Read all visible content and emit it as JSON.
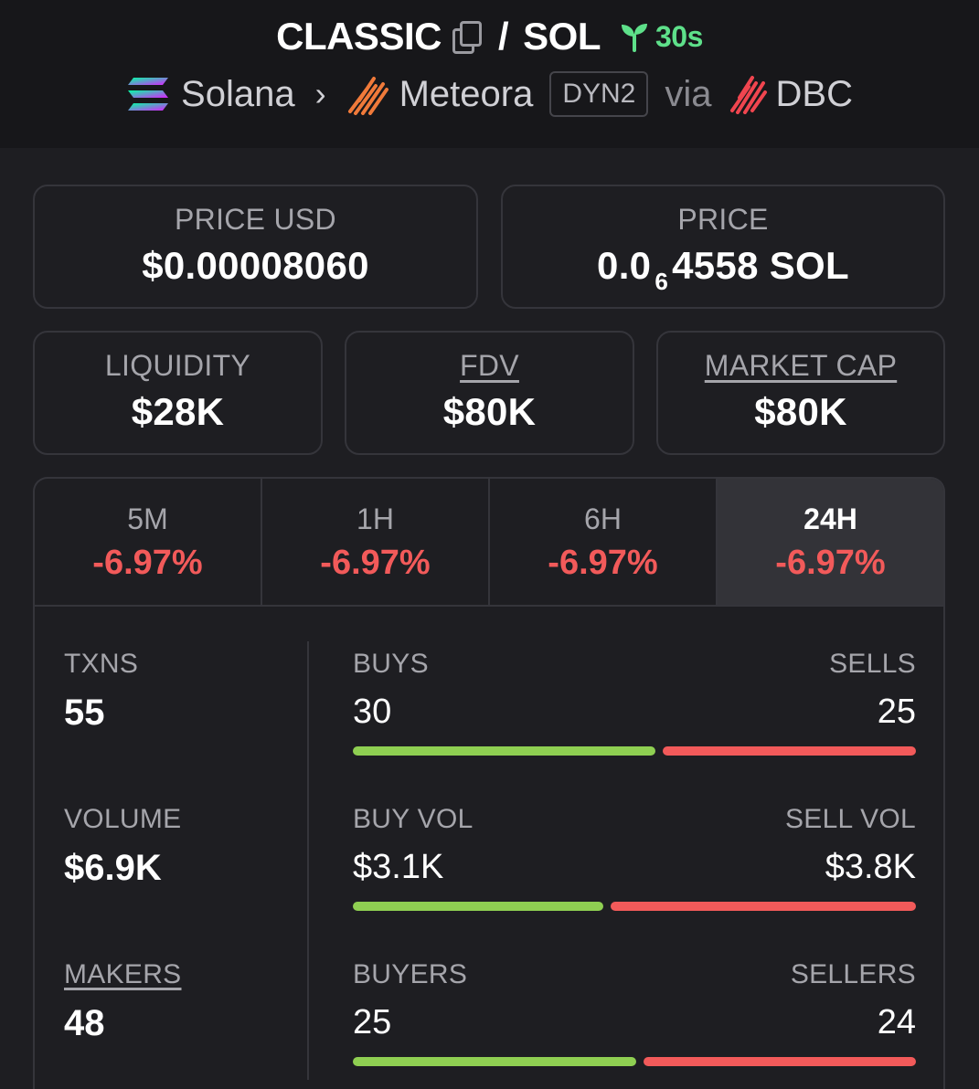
{
  "header": {
    "token_symbol": "CLASSIC",
    "slash": "/",
    "quote_symbol": "SOL",
    "age": "30s",
    "chain": "Solana",
    "dex": "Meteora",
    "pool_type": "DYN2",
    "via_label": "via",
    "launchpad": "DBC"
  },
  "prices": {
    "price_usd_label": "PRICE USD",
    "price_usd_value": "$0.00008060",
    "price_label": "PRICE",
    "price_prefix": "0.0",
    "price_zeros": "6",
    "price_suffix": "4558 SOL"
  },
  "metrics": {
    "liquidity_label": "LIQUIDITY",
    "liquidity_value": "$28K",
    "fdv_label": "FDV",
    "fdv_value": "$80K",
    "mcap_label": "MARKET CAP",
    "mcap_value": "$80K"
  },
  "periods": [
    {
      "label": "5M",
      "change": "-6.97%"
    },
    {
      "label": "1H",
      "change": "-6.97%"
    },
    {
      "label": "6H",
      "change": "-6.97%"
    },
    {
      "label": "24H",
      "change": "-6.97%"
    }
  ],
  "active_period": "24H",
  "stats": {
    "txns_label": "TXNS",
    "txns_value": "55",
    "volume_label": "VOLUME",
    "volume_value": "$6.9K",
    "makers_label": "MAKERS",
    "makers_value": "48",
    "buys_label": "BUYS",
    "buys_value": "30",
    "sells_label": "SELLS",
    "sells_value": "25",
    "buys_fraction": 0.545,
    "buy_vol_label": "BUY VOL",
    "buy_vol_value": "$3.1K",
    "sell_vol_label": "SELL VOL",
    "sell_vol_value": "$3.8K",
    "buy_vol_fraction": 0.45,
    "buyers_label": "BUYERS",
    "buyers_value": "25",
    "sellers_label": "SELLERS",
    "sellers_value": "24",
    "buyers_fraction": 0.51
  },
  "colors": {
    "positive": "#8fcf52",
    "negative": "#f25a5a",
    "age": "#5ee08a"
  }
}
